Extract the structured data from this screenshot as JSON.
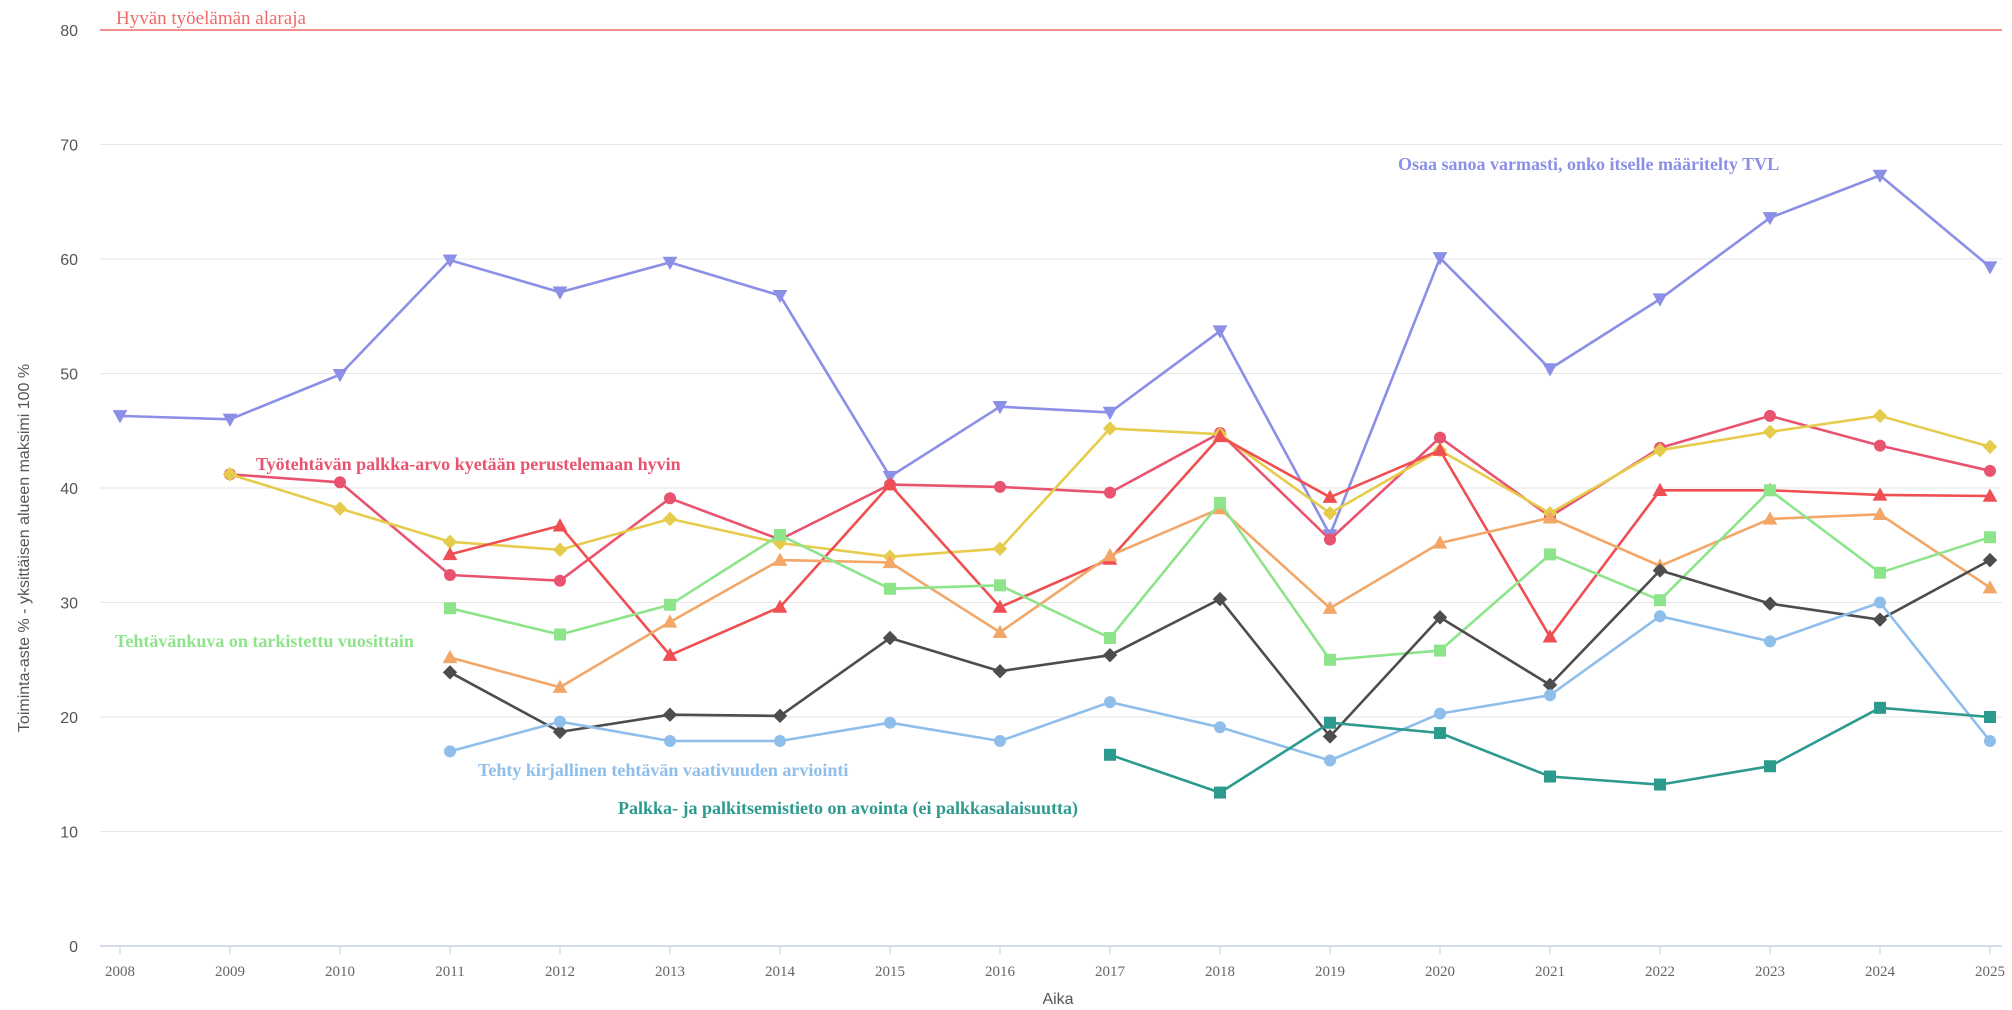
{
  "chart_data": {
    "type": "line",
    "title": "",
    "xlabel": "Aika",
    "ylabel": "Toiminta-aste % - yksittäisen alueen maksimi 100 %",
    "ylim": [
      0,
      80
    ],
    "yticks": [
      0,
      10,
      20,
      30,
      40,
      50,
      60,
      70,
      80
    ],
    "x": [
      2008,
      2009,
      2010,
      2011,
      2012,
      2013,
      2014,
      2015,
      2016,
      2017,
      2018,
      2019,
      2020,
      2021,
      2022,
      2023,
      2024,
      2025
    ],
    "grid": "horizontal",
    "legend": "none",
    "reference_line": {
      "label": "Hyvän työelämän alaraja",
      "value": 80,
      "color": "#f06a6a"
    },
    "series": [
      {
        "name": "Osaa sanoa varmasti, onko itselle määritelty TVL",
        "color": "#8b8fe6",
        "marker": "triangle-down",
        "values": [
          46.3,
          46.0,
          49.9,
          59.9,
          57.1,
          59.7,
          56.8,
          41.0,
          47.1,
          46.6,
          53.7,
          35.9,
          60.1,
          50.4,
          56.5,
          63.6,
          67.3,
          59.3
        ]
      },
      {
        "name": "Työtehtävän palkka-arvo kyetään perustelemaan hyvin",
        "color": "#e8546f",
        "marker": "circle",
        "values": [
          null,
          41.2,
          40.5,
          32.4,
          31.9,
          39.1,
          35.5,
          40.3,
          40.1,
          39.6,
          44.8,
          35.5,
          44.4,
          37.5,
          43.5,
          46.3,
          43.7,
          41.5
        ]
      },
      {
        "name": "",
        "color": "#e6cc4c",
        "marker": "diamond",
        "values": [
          null,
          41.2,
          38.2,
          35.3,
          34.6,
          37.3,
          35.2,
          34.0,
          34.7,
          45.2,
          44.7,
          37.8,
          43.3,
          37.8,
          43.3,
          44.9,
          46.3,
          43.6
        ]
      },
      {
        "name": "",
        "color": "#ef4f52",
        "marker": "triangle",
        "values": [
          null,
          null,
          null,
          34.2,
          36.7,
          25.4,
          29.6,
          40.3,
          29.6,
          33.8,
          44.5,
          39.2,
          43.3,
          27.0,
          39.8,
          39.8,
          39.4,
          39.3
        ]
      },
      {
        "name": "",
        "color": "#f2a768",
        "marker": "triangle",
        "values": [
          null,
          null,
          null,
          25.2,
          22.6,
          28.3,
          33.7,
          33.5,
          27.4,
          34.1,
          38.2,
          29.5,
          35.2,
          37.4,
          33.2,
          37.3,
          37.7,
          31.3
        ]
      },
      {
        "name": "Tehtävänkuva on tarkistettu vuosittain",
        "color": "#8ee48b",
        "marker": "square",
        "values": [
          null,
          null,
          null,
          29.5,
          27.2,
          29.8,
          35.9,
          31.2,
          31.5,
          26.9,
          38.7,
          25.0,
          25.8,
          34.2,
          30.2,
          39.8,
          32.6,
          35.7
        ]
      },
      {
        "name": "",
        "color": "#4d4d4d",
        "marker": "diamond",
        "values": [
          null,
          null,
          null,
          23.9,
          18.7,
          20.2,
          20.1,
          26.9,
          24.0,
          25.4,
          30.3,
          18.3,
          28.7,
          22.8,
          32.8,
          29.9,
          28.5,
          33.7
        ]
      },
      {
        "name": "Tehty kirjallinen tehtävän vaativuuden arviointi",
        "color": "#8fbeea",
        "marker": "circle",
        "values": [
          null,
          null,
          null,
          17.0,
          19.6,
          17.9,
          17.9,
          19.5,
          17.9,
          21.3,
          19.1,
          16.2,
          20.3,
          21.9,
          28.8,
          26.6,
          30.0,
          17.9
        ]
      },
      {
        "name": "Palkka- ja palkitsemistieto on avointa (ei palkkasalaisuutta)",
        "color": "#2c9b8e",
        "marker": "square",
        "values": [
          null,
          null,
          null,
          null,
          null,
          null,
          null,
          null,
          null,
          16.7,
          13.4,
          19.5,
          18.6,
          14.8,
          14.1,
          15.7,
          20.8,
          20.0
        ]
      }
    ]
  }
}
